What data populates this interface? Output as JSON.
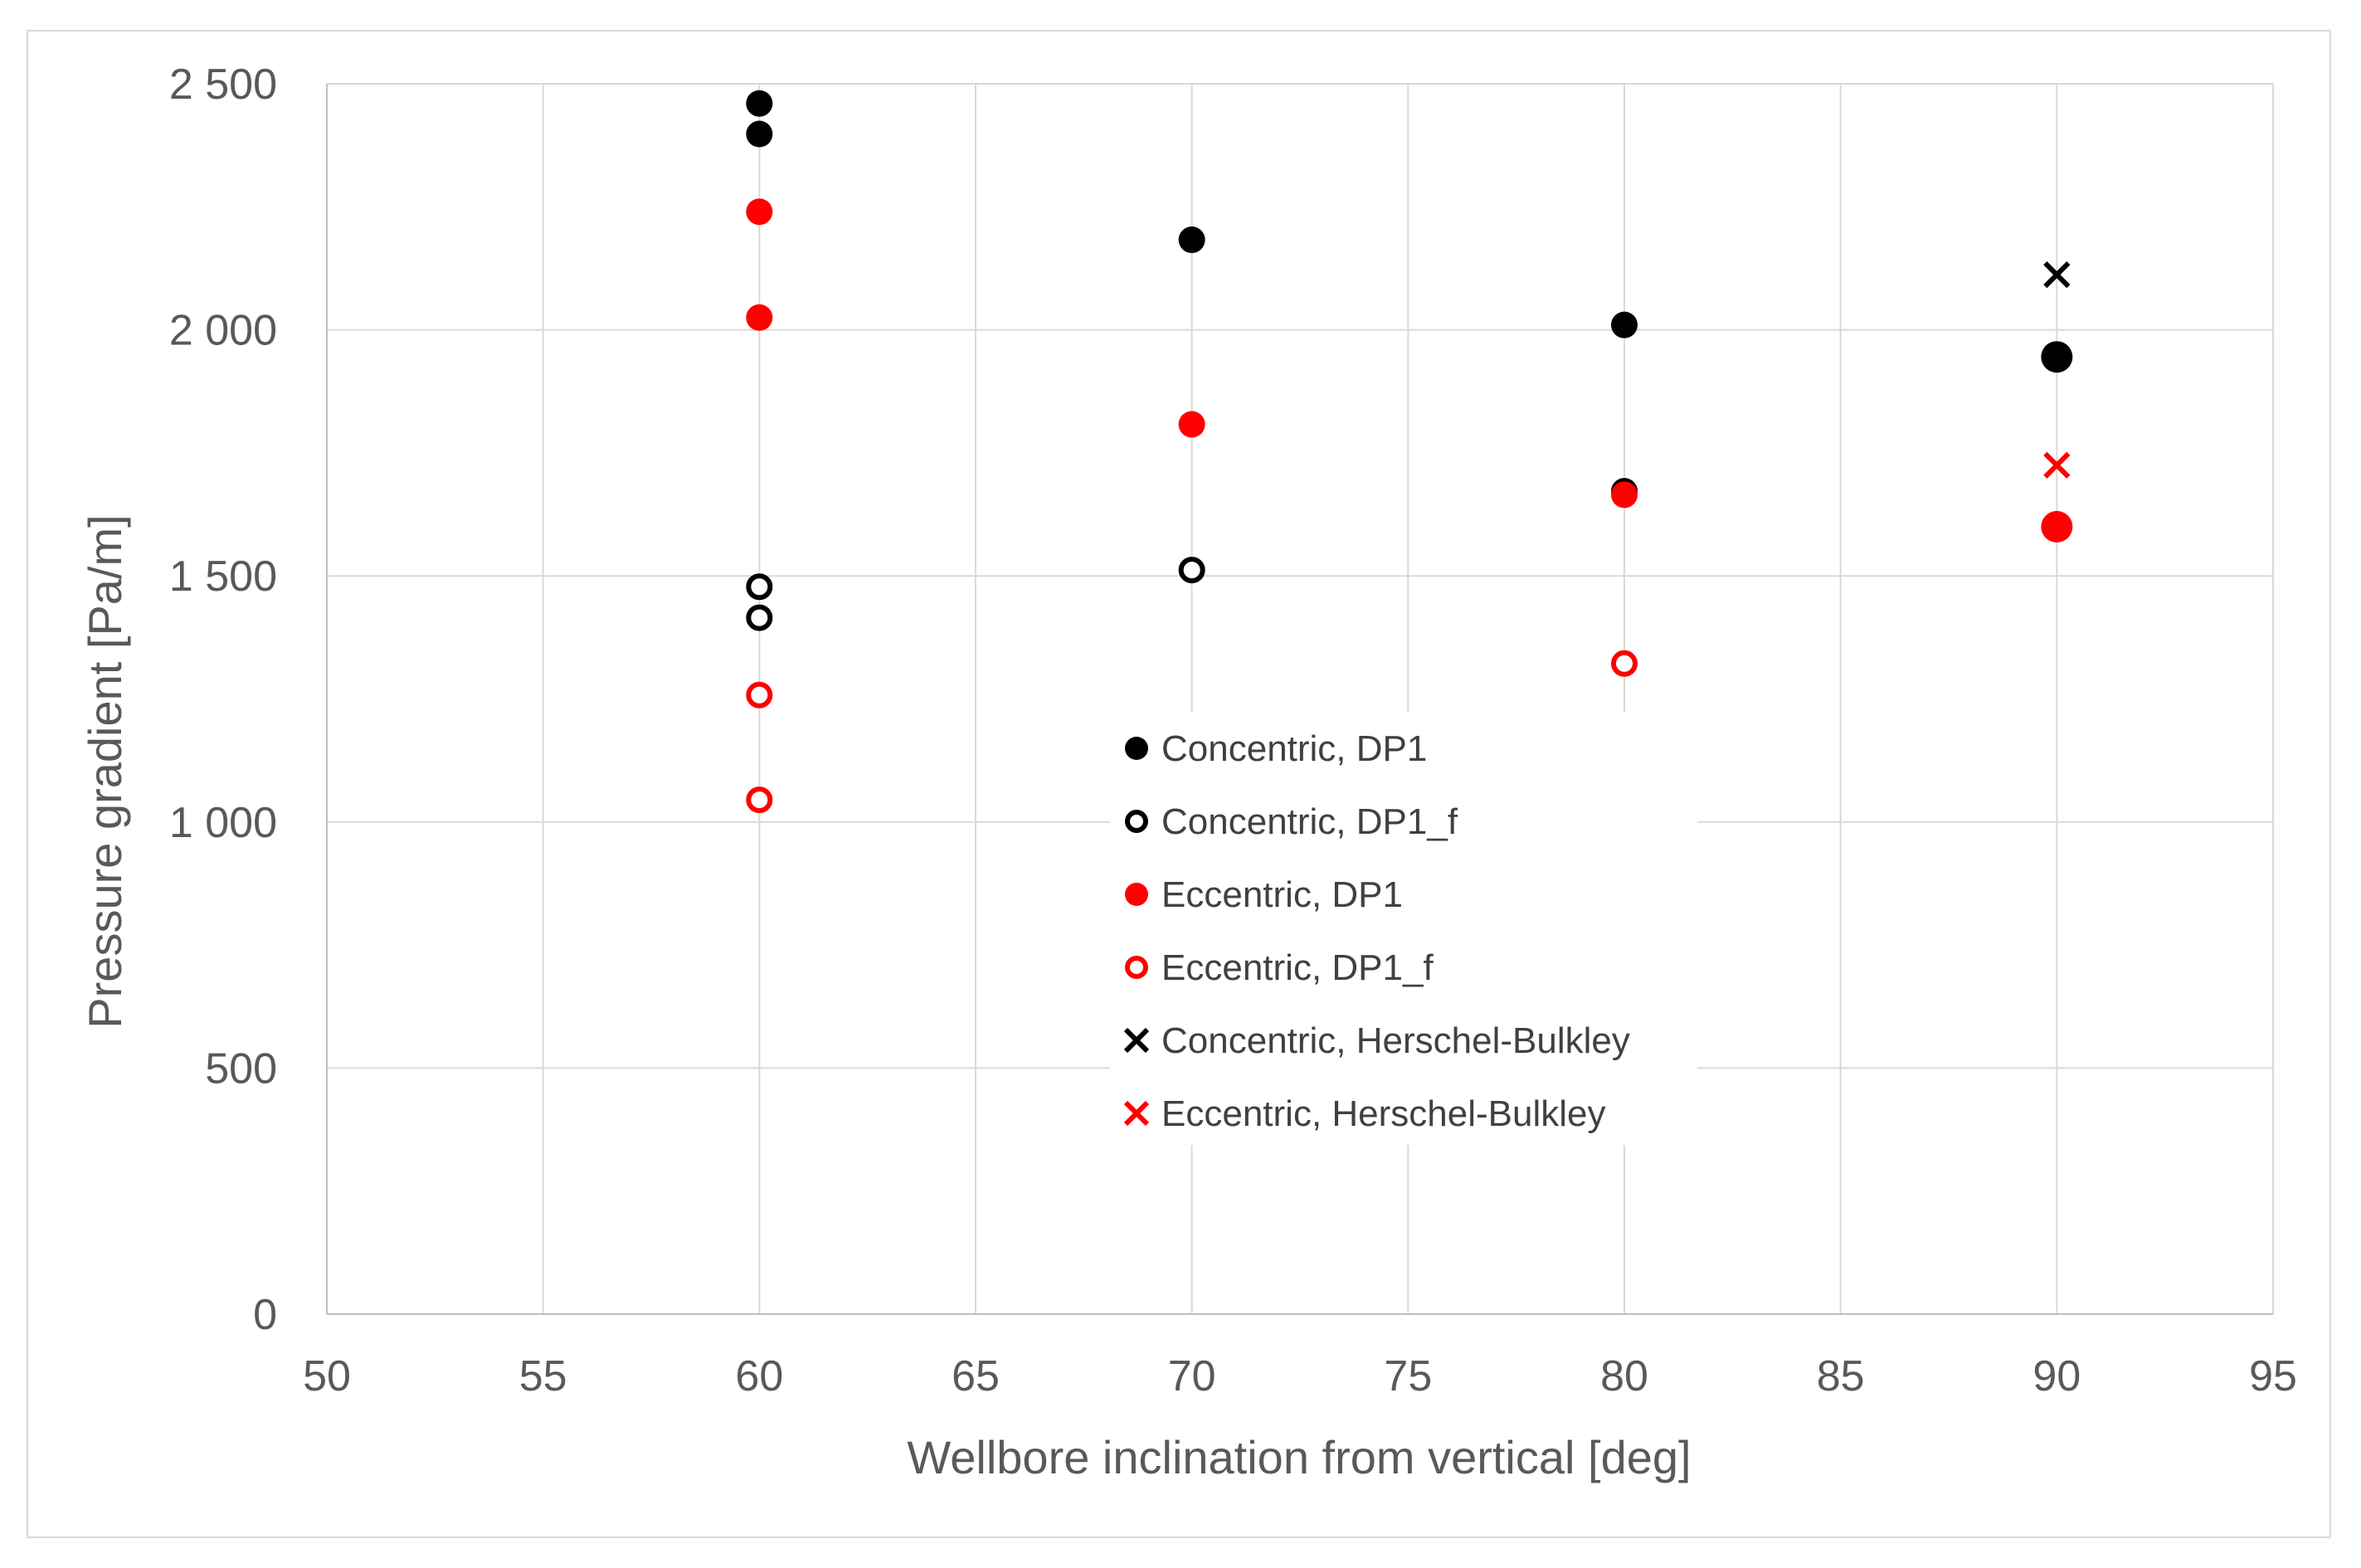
{
  "chart_data": {
    "type": "scatter",
    "title": "",
    "xlabel": "Wellbore inclination from vertical [deg]",
    "ylabel": "Pressure gradient [Pa/m]",
    "xlim": [
      50,
      95
    ],
    "ylim": [
      0,
      2500
    ],
    "x_ticks": [
      50,
      55,
      60,
      65,
      70,
      75,
      80,
      85,
      90,
      95
    ],
    "x_tick_labels": [
      "50",
      "55",
      "60",
      "65",
      "70",
      "75",
      "80",
      "85",
      "90",
      "95"
    ],
    "y_ticks": [
      0,
      500,
      1000,
      1500,
      2000,
      2500
    ],
    "y_tick_labels": [
      "0",
      "500",
      "1 000",
      "1 500",
      "2 000",
      "2 500"
    ],
    "grid": true,
    "legend_position": "center",
    "series": [
      {
        "name": "Concentric, DP1",
        "marker": "filled-circle",
        "color": "#000000",
        "points": [
          {
            "x": 60,
            "y": 2460
          },
          {
            "x": 60,
            "y": 2398
          },
          {
            "x": 70,
            "y": 2183
          },
          {
            "x": 80,
            "y": 2010
          },
          {
            "x": 80,
            "y": 1672
          },
          {
            "x": 90,
            "y": 1945
          }
        ]
      },
      {
        "name": "Concentric, DP1_f",
        "marker": "open-circle",
        "color": "#000000",
        "points": [
          {
            "x": 60,
            "y": 1478
          },
          {
            "x": 60,
            "y": 1415
          },
          {
            "x": 70,
            "y": 1512
          }
        ]
      },
      {
        "name": "Eccentric, DP1",
        "marker": "filled-circle",
        "color": "#ff0000",
        "points": [
          {
            "x": 60,
            "y": 2240
          },
          {
            "x": 60,
            "y": 2025
          },
          {
            "x": 70,
            "y": 1808
          },
          {
            "x": 80,
            "y": 1665
          },
          {
            "x": 90,
            "y": 1600
          }
        ]
      },
      {
        "name": "Eccentric, DP1_f",
        "marker": "open-circle",
        "color": "#ff0000",
        "points": [
          {
            "x": 60,
            "y": 1258
          },
          {
            "x": 60,
            "y": 1045
          },
          {
            "x": 80,
            "y": 1322
          }
        ]
      },
      {
        "name": "Concentric, Herschel-Bulkley",
        "marker": "x",
        "color": "#000000",
        "points": [
          {
            "x": 90,
            "y": 2112
          }
        ]
      },
      {
        "name": "Eccentric, Herschel-Bulkley",
        "marker": "x",
        "color": "#ff0000",
        "points": [
          {
            "x": 90,
            "y": 1725
          }
        ]
      }
    ]
  }
}
